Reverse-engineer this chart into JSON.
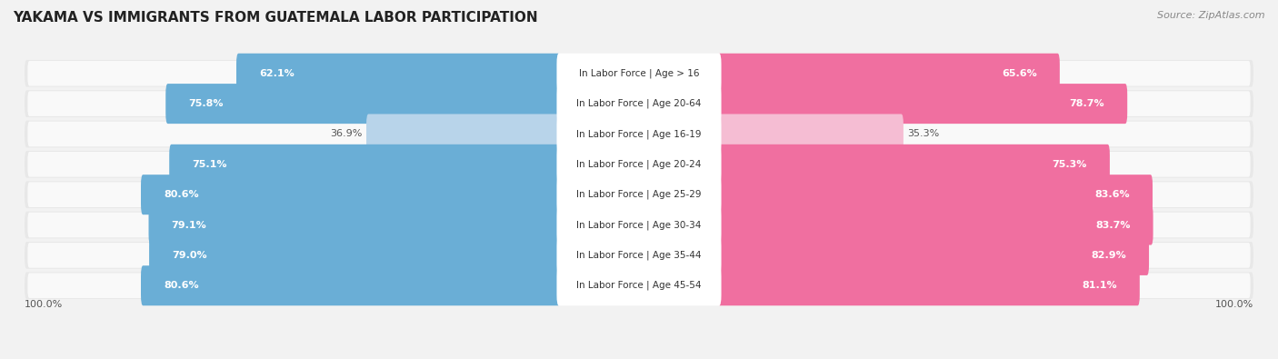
{
  "title": "YAKAMA VS IMMIGRANTS FROM GUATEMALA LABOR PARTICIPATION",
  "source": "Source: ZipAtlas.com",
  "categories": [
    "In Labor Force | Age > 16",
    "In Labor Force | Age 20-64",
    "In Labor Force | Age 16-19",
    "In Labor Force | Age 20-24",
    "In Labor Force | Age 25-29",
    "In Labor Force | Age 30-34",
    "In Labor Force | Age 35-44",
    "In Labor Force | Age 45-54"
  ],
  "yakama_values": [
    62.1,
    75.8,
    36.9,
    75.1,
    80.6,
    79.1,
    79.0,
    80.6
  ],
  "guatemala_values": [
    65.6,
    78.7,
    35.3,
    75.3,
    83.6,
    83.7,
    82.9,
    81.1
  ],
  "yakama_color": "#6aaed6",
  "yakama_light_color": "#b8d4ea",
  "guatemala_color": "#f06fa0",
  "guatemala_light_color": "#f5bdd3",
  "bg_color": "#f2f2f2",
  "row_bg_color": "#e8e8e8",
  "row_inner_color": "#f9f9f9",
  "title_fontsize": 11,
  "source_fontsize": 8,
  "label_fontsize": 7.5,
  "value_fontsize": 8
}
